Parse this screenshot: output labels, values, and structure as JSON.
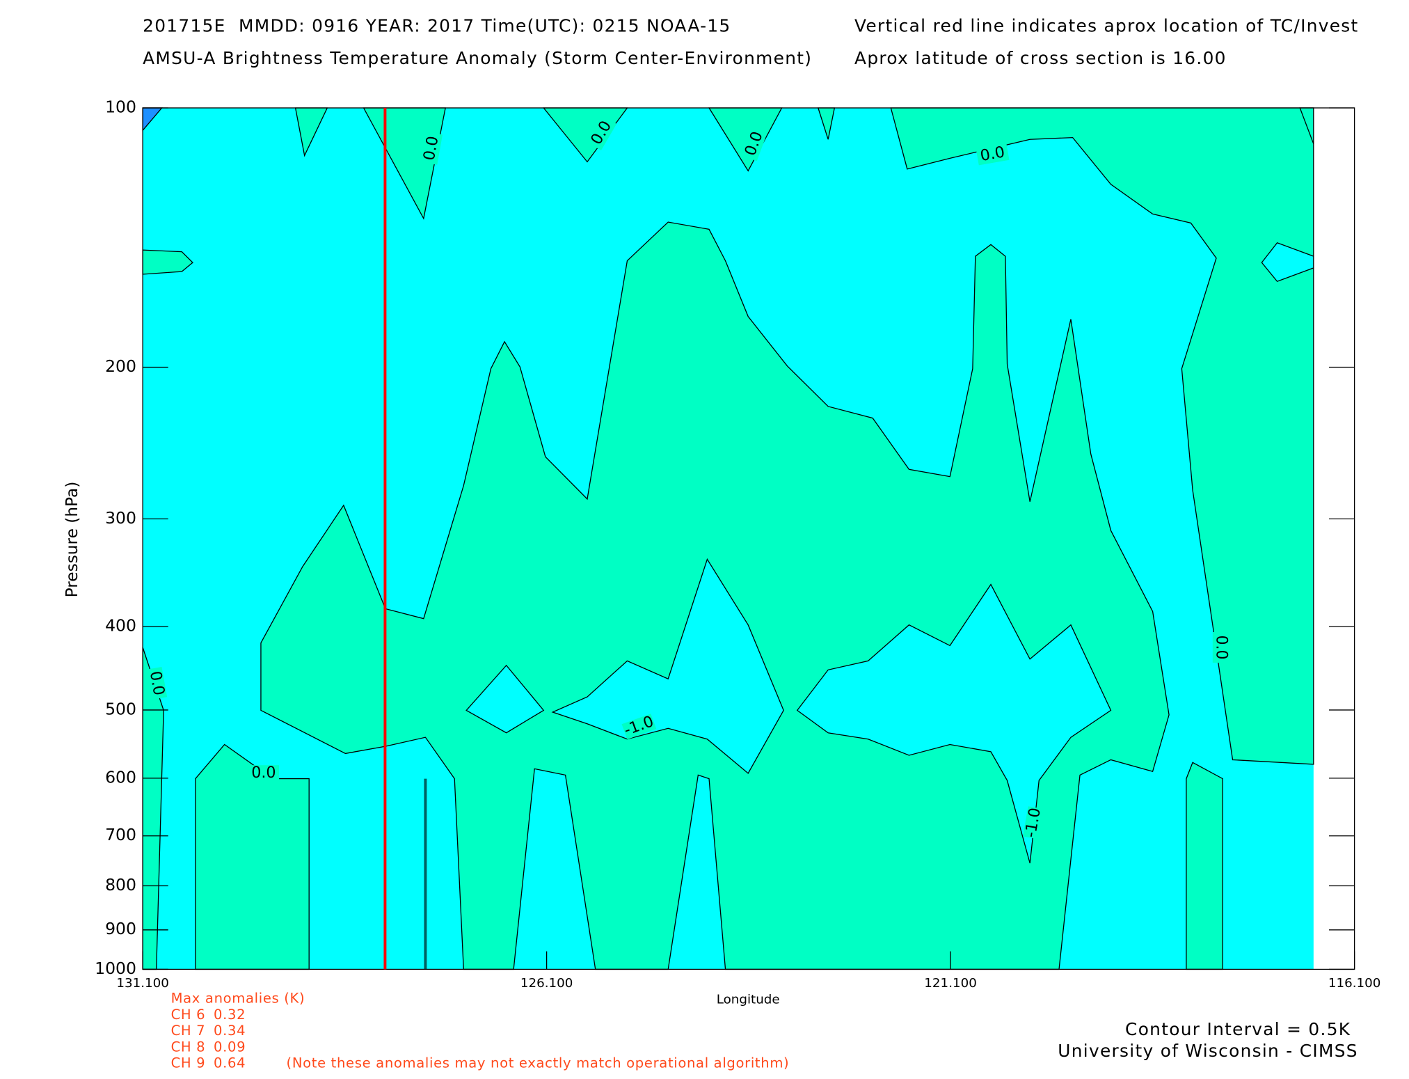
{
  "chart_data": {
    "type": "contour",
    "title_left": [
      "201715E  MMDD: 0916 YEAR: 2017 Time(UTC): 0215 NOAA-15",
      "AMSU-A Brightness Temperature Anomaly (Storm Center-Environment)"
    ],
    "title_right": [
      "Vertical red line indicates aprox location of TC/Invest",
      "Aprox latitude of cross section is 16.00"
    ],
    "x_label": "Longitude",
    "y_label": "Pressure (hPa)",
    "xlim": [
      131.1,
      116.1
    ],
    "xticks": [
      {
        "value": 131.1,
        "label": "131.100"
      },
      {
        "value": 126.1,
        "label": "126.100"
      },
      {
        "value": 121.1,
        "label": "121.100"
      },
      {
        "value": 116.1,
        "label": "116.100"
      }
    ],
    "ylim": [
      1000,
      100
    ],
    "yticks": [
      100,
      200,
      300,
      400,
      500,
      600,
      700,
      800,
      900,
      1000
    ],
    "y_scale": "log",
    "tc_longitude": 128.1,
    "tc_line_color": "#ff0000",
    "contour_labels": [
      "0.0",
      "0.0",
      "0.0",
      "0.0",
      "0.0",
      "0.0",
      "-1.0",
      "-1.0",
      "0.0"
    ],
    "max_anomalies_title": "Max anomalies (K)",
    "max_anomalies": [
      {
        "channel": "CH 6",
        "value": 0.32
      },
      {
        "channel": "CH 7",
        "value": 0.34
      },
      {
        "channel": "CH 8",
        "value": 0.09
      },
      {
        "channel": "CH 9",
        "value": 0.64
      }
    ],
    "anomaly_note": "(Note these anomalies may not exactly match operational algorithm)",
    "contour_interval": "Contour Interval = 0.5K",
    "credit": "University of Wisconsin - CIMSS"
  }
}
